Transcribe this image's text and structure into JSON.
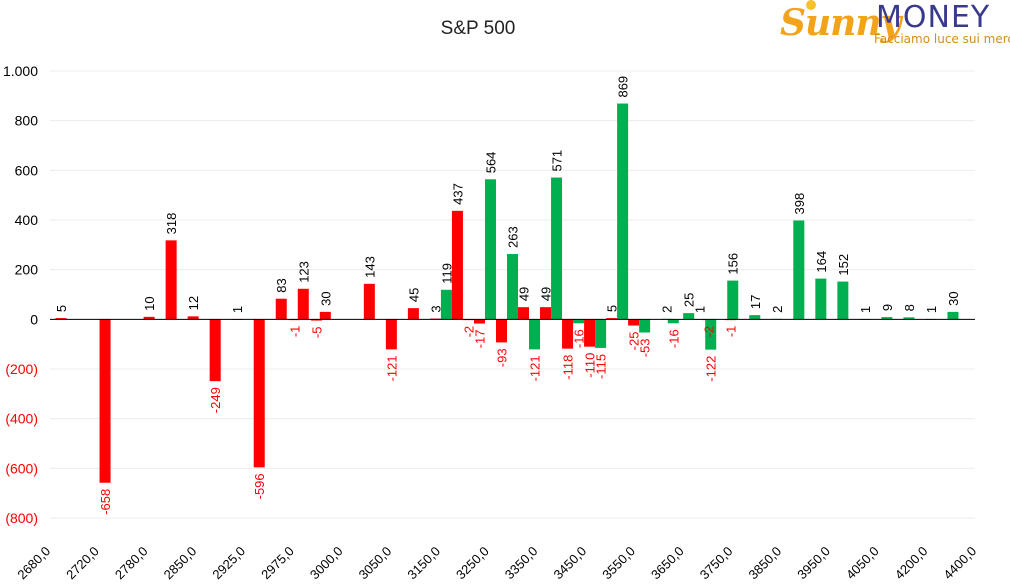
{
  "logo": {
    "part1": "Sunny",
    "part2": "MONEY",
    "tagline": "Facciamo luce sui mercati"
  },
  "chart_data": {
    "type": "bar",
    "title": "S&P 500",
    "ylim": [
      -800,
      1000
    ],
    "yticks": [
      {
        "value": 1000,
        "label": "1.000"
      },
      {
        "value": 800,
        "label": "800"
      },
      {
        "value": 600,
        "label": "600"
      },
      {
        "value": 400,
        "label": "400"
      },
      {
        "value": 200,
        "label": "200"
      },
      {
        "value": 0,
        "label": "0"
      },
      {
        "value": -200,
        "label": "(200)"
      },
      {
        "value": -400,
        "label": "(400)"
      },
      {
        "value": -600,
        "label": "(600)"
      },
      {
        "value": -800,
        "label": "(800)"
      }
    ],
    "xtick_labels": [
      "2680,0",
      "2720,0",
      "2780,0",
      "2850,0",
      "2925,0",
      "2975,0",
      "3000,0",
      "3050,0",
      "3150,0",
      "3250,0",
      "3350,0",
      "3450,0",
      "3550,0",
      "3650,0",
      "3750,0",
      "3850,0",
      "3950,0",
      "4050,0",
      "4200,0",
      "4400,0"
    ],
    "colors": {
      "red": "#ff0000",
      "green": "#00b050",
      "neg_label": "#ff0000",
      "pos_label": "#000000"
    },
    "series": [
      {
        "color": "red",
        "values": [
          {
            "x": 1,
            "v": 5
          },
          {
            "x": 3,
            "v": -658
          },
          {
            "x": 5,
            "v": 10
          },
          {
            "x": 6,
            "v": 318
          },
          {
            "x": 7,
            "v": 12
          },
          {
            "x": 8,
            "v": -249
          },
          {
            "x": 9,
            "v": 1
          },
          {
            "x": 10,
            "v": -596
          },
          {
            "x": 11,
            "v": 83
          },
          {
            "x": 11.6,
            "v": -1
          },
          {
            "x": 12,
            "v": 123
          },
          {
            "x": 12.6,
            "v": -5
          },
          {
            "x": 13,
            "v": 30
          },
          {
            "x": 15,
            "v": 143
          },
          {
            "x": 16,
            "v": -121
          },
          {
            "x": 17,
            "v": 45
          },
          {
            "x": 18,
            "v": 3
          },
          {
            "x": 19,
            "v": 437
          },
          {
            "x": 19.5,
            "v": -2
          },
          {
            "x": 20,
            "v": -17
          },
          {
            "x": 21,
            "v": -93
          },
          {
            "x": 22,
            "v": 49
          },
          {
            "x": 23,
            "v": 49
          },
          {
            "x": 24,
            "v": -118
          },
          {
            "x": 25,
            "v": -110
          },
          {
            "x": 26,
            "v": 5
          },
          {
            "x": 27,
            "v": -25
          },
          {
            "x": 30.4,
            "v": -2
          },
          {
            "x": 31.4,
            "v": -1
          }
        ]
      },
      {
        "color": "green",
        "values": [
          {
            "x": 18.5,
            "v": 119
          },
          {
            "x": 20.5,
            "v": 564
          },
          {
            "x": 21.5,
            "v": 263
          },
          {
            "x": 22.5,
            "v": -121
          },
          {
            "x": 23.5,
            "v": 571
          },
          {
            "x": 24.5,
            "v": -16
          },
          {
            "x": 25.5,
            "v": -115
          },
          {
            "x": 26.5,
            "v": 869
          },
          {
            "x": 27.5,
            "v": -53
          },
          {
            "x": 28.5,
            "v": 2
          },
          {
            "x": 28.8,
            "v": -16
          },
          {
            "x": 29.5,
            "v": 25
          },
          {
            "x": 30,
            "v": 1
          },
          {
            "x": 30.5,
            "v": -122
          },
          {
            "x": 31.5,
            "v": 156
          },
          {
            "x": 32.5,
            "v": 17
          },
          {
            "x": 33.5,
            "v": 2
          },
          {
            "x": 34.5,
            "v": 398
          },
          {
            "x": 35.5,
            "v": 164
          },
          {
            "x": 36.5,
            "v": 152
          },
          {
            "x": 37.5,
            "v": 1
          },
          {
            "x": 38.5,
            "v": 9
          },
          {
            "x": 39.5,
            "v": 8
          },
          {
            "x": 40.5,
            "v": 1
          },
          {
            "x": 41.5,
            "v": 30
          }
        ]
      }
    ]
  }
}
